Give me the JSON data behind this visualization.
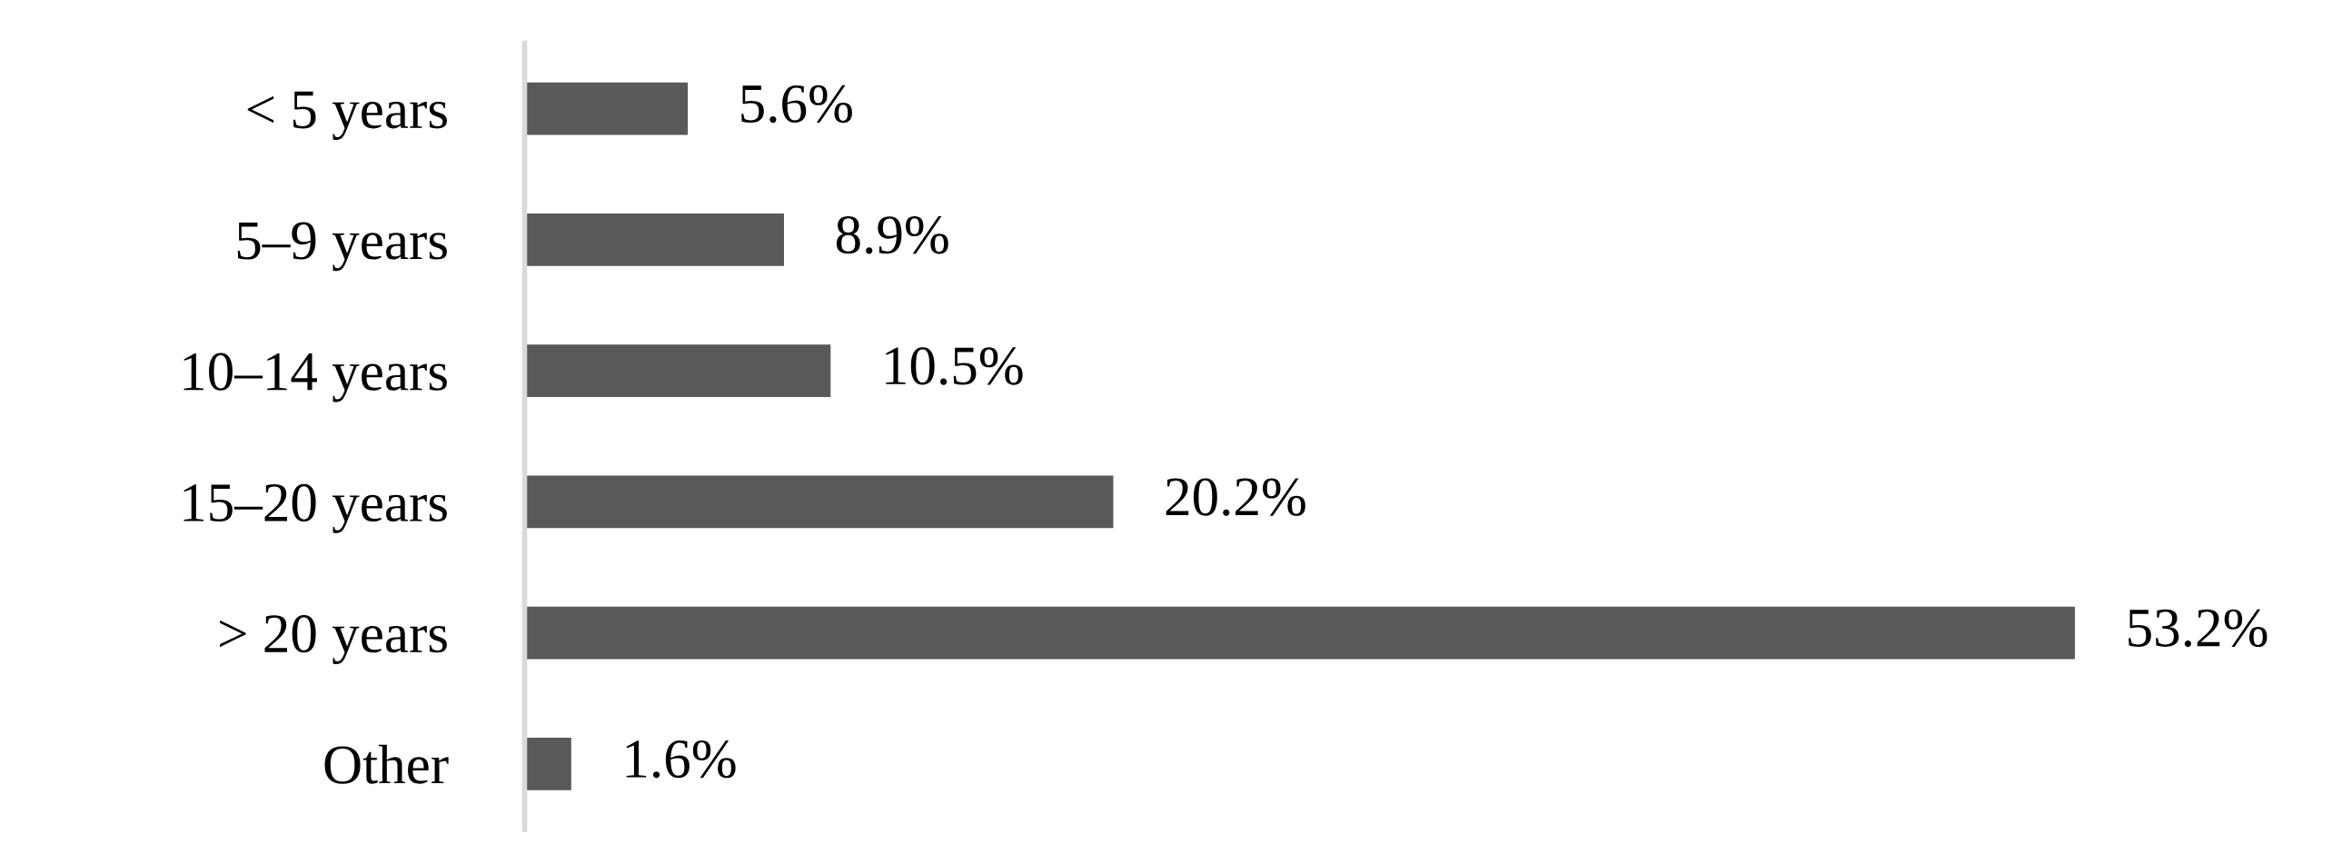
{
  "chart_data": {
    "type": "bar",
    "orientation": "horizontal",
    "categories": [
      "< 5 years",
      "5–9 years",
      "10–14 years",
      "15–20 years",
      "> 20 years",
      "Other"
    ],
    "values": [
      5.6,
      8.9,
      10.5,
      20.2,
      53.2,
      1.6
    ],
    "value_labels": [
      "5.6%",
      "8.9%",
      "10.5%",
      "20.2%",
      "53.2%",
      "1.6%"
    ],
    "color": "#595959",
    "grid": false,
    "legend": false,
    "tick_labels": "y"
  }
}
